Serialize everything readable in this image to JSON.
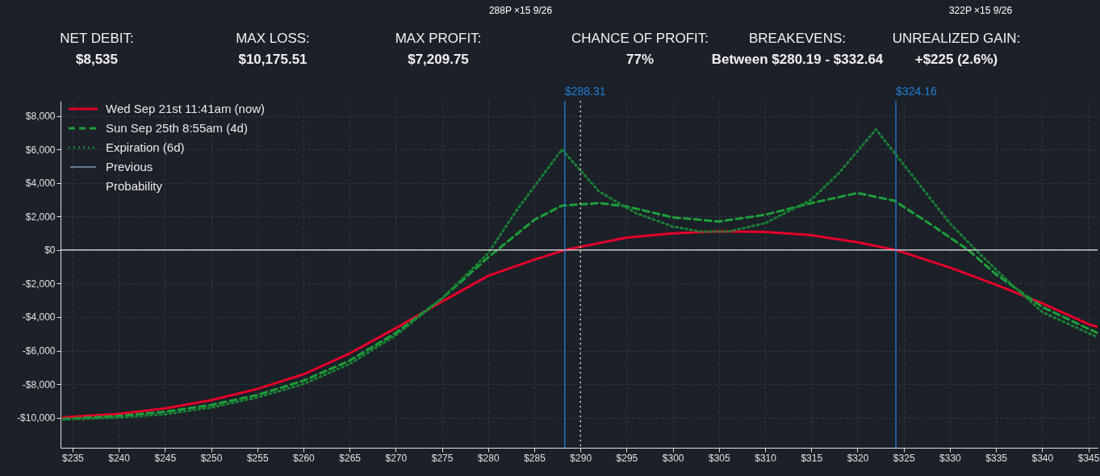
{
  "chart_data": {
    "type": "line",
    "annotations": [
      "NET DEBIT:",
      "$8,535",
      "MAX LOSS:",
      "$10,175.51",
      "MAX PROFIT:",
      "$7,209.75",
      "CHANCE OF PROFIT:",
      "77%",
      "BREAKEVENS:",
      "Between $280.19 - $332.64",
      "UNREALIZED GAIN:",
      "+$225 (2.6%)",
      "288P ×15 9/26",
      "322P ×15 9/26",
      "Previous",
      "Probability"
    ],
    "series": [
      {
        "name": "Wed Sep 21st 11:41am (now)",
        "color": "#e4002b",
        "line_style": "solid",
        "x": [
          234,
          235,
          240,
          245,
          250,
          255,
          260,
          265,
          270,
          275,
          280,
          285,
          288.31,
          295,
          300,
          305,
          310,
          315,
          320,
          324.16,
          330,
          335,
          340,
          345,
          346
        ],
        "values": [
          -10000,
          -9950,
          -9780,
          -9450,
          -8960,
          -8290,
          -7420,
          -6170,
          -4670,
          -3080,
          -1540,
          -580,
          0,
          740,
          990,
          1110,
          1080,
          880,
          460,
          0,
          -1050,
          -2070,
          -3180,
          -4420,
          -4580
        ]
      },
      {
        "name": "Sun Sep 25th 8:55am (4d)",
        "color": "#1e9e3a",
        "line_style": "dashed",
        "x": [
          234,
          235,
          240,
          245,
          250,
          255,
          260,
          265,
          270,
          275,
          280,
          285,
          288,
          292,
          295,
          300,
          305,
          310,
          315,
          320,
          324,
          328,
          332,
          335,
          340,
          345,
          346
        ],
        "values": [
          -10080,
          -10050,
          -9900,
          -9650,
          -9250,
          -8650,
          -7800,
          -6600,
          -4950,
          -2900,
          -450,
          1800,
          2650,
          2800,
          2600,
          1950,
          1700,
          2100,
          2800,
          3400,
          2940,
          1500,
          0,
          -1450,
          -3400,
          -4700,
          -4950
        ]
      },
      {
        "name": "Expiration (6d)",
        "color": "#1a7f36",
        "line_style": "dotted",
        "x": [
          234,
          235,
          240,
          245,
          250,
          255,
          260,
          265,
          270,
          275,
          280,
          283,
          288,
          292,
          296,
          300,
          303,
          306,
          310,
          315,
          318,
          322,
          326,
          330,
          333,
          336,
          340,
          346
        ],
        "values": [
          -10120,
          -10100,
          -10000,
          -9800,
          -9400,
          -8800,
          -8000,
          -6800,
          -5100,
          -2900,
          -200,
          2300,
          6000,
          3500,
          2200,
          1400,
          1100,
          1100,
          1600,
          3000,
          4600,
          7200,
          4400,
          1600,
          -100,
          -1700,
          -3700,
          -5200
        ]
      }
    ],
    "xlim": [
      233.7,
      346
    ],
    "xticks": [
      {
        "value": 235,
        "label": "$235"
      },
      {
        "value": 240,
        "label": "$240"
      },
      {
        "value": 245,
        "label": "$245"
      },
      {
        "value": 250,
        "label": "$250"
      },
      {
        "value": 255,
        "label": "$255"
      },
      {
        "value": 260,
        "label": "$260"
      },
      {
        "value": 265,
        "label": "$265"
      },
      {
        "value": 270,
        "label": "$270"
      },
      {
        "value": 275,
        "label": "$275"
      },
      {
        "value": 280,
        "label": "$280"
      },
      {
        "value": 285,
        "label": "$285"
      },
      {
        "value": 290,
        "label": "$290"
      },
      {
        "value": 295,
        "label": "$295"
      },
      {
        "value": 300,
        "label": "$300"
      },
      {
        "value": 305,
        "label": "$305"
      },
      {
        "value": 310,
        "label": "$310"
      },
      {
        "value": 315,
        "label": "$315"
      },
      {
        "value": 320,
        "label": "$320"
      },
      {
        "value": 325,
        "label": "$325"
      },
      {
        "value": 330,
        "label": "$330"
      },
      {
        "value": 335,
        "label": "$335"
      },
      {
        "value": 340,
        "label": "$340"
      },
      {
        "value": 345,
        "label": "$345"
      }
    ],
    "ylim": [
      -11800,
      8900
    ],
    "yticks": [
      {
        "value": -10000,
        "label": "-$10,000"
      },
      {
        "value": -8000,
        "label": "-$8,000"
      },
      {
        "value": -6000,
        "label": "-$6,000"
      },
      {
        "value": -4000,
        "label": "-$4,000"
      },
      {
        "value": -2000,
        "label": "-$2,000"
      },
      {
        "value": 0,
        "label": "$0"
      },
      {
        "value": 2000,
        "label": "$2,000"
      },
      {
        "value": 4000,
        "label": "$4,000"
      },
      {
        "value": 6000,
        "label": "$6,000"
      },
      {
        "value": 8000,
        "label": "$8,000"
      }
    ],
    "ref_lines": [
      {
        "axis": "y",
        "value": 0,
        "color": "#e8e8e8",
        "line_style": "solid"
      },
      {
        "axis": "x",
        "value": 288.31,
        "label": "$288.31",
        "color": "#1f7fd6",
        "line_style": "solid"
      },
      {
        "axis": "x",
        "value": 290,
        "color": "#e8e8e8",
        "line_style": "dotted"
      },
      {
        "axis": "x",
        "value": 324.16,
        "label": "$324.16",
        "color": "#1f7fd6",
        "line_style": "solid"
      }
    ],
    "grid": true,
    "legend": "top left"
  }
}
